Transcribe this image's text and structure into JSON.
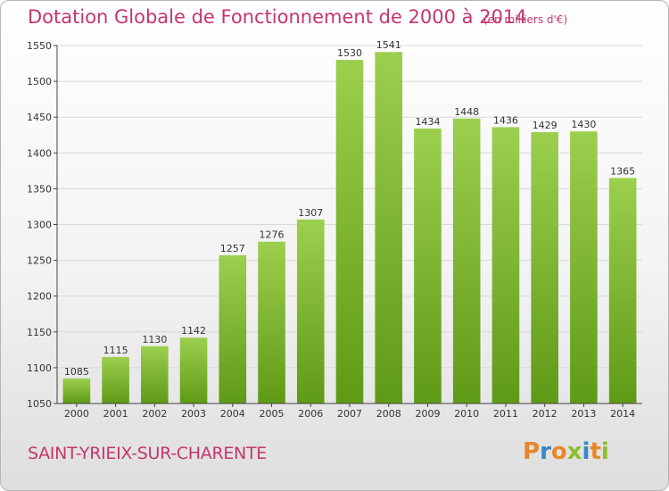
{
  "header": {
    "title": "Dotation Globale de Fonctionnement de 2000 à 2014",
    "unit": "(en milliers d'€)"
  },
  "footer": {
    "commune": "SAINT-YRIEIX-SUR-CHARENTE",
    "logo": "Proxiti"
  },
  "colors": {
    "title": "#c4376b",
    "bar_top": "#9ccf4e",
    "bar_bottom": "#5f9a16",
    "grid": "#d8d8d8"
  },
  "chart_data": {
    "type": "bar",
    "title": "Dotation Globale de Fonctionnement de 2000 à 2014",
    "subtitle": "(en milliers d'€)",
    "xlabel": "",
    "ylabel": "",
    "ylim": [
      1050,
      1550
    ],
    "yticks": [
      1050,
      1100,
      1150,
      1200,
      1250,
      1300,
      1350,
      1400,
      1450,
      1500,
      1550
    ],
    "grid": true,
    "legend": "none",
    "categories": [
      "2000",
      "2001",
      "2002",
      "2003",
      "2004",
      "2005",
      "2006",
      "2007",
      "2008",
      "2009",
      "2010",
      "2011",
      "2012",
      "2013",
      "2014"
    ],
    "values": [
      1085,
      1115,
      1130,
      1142,
      1257,
      1276,
      1307,
      1530,
      1541,
      1434,
      1448,
      1436,
      1429,
      1430,
      1365
    ]
  }
}
